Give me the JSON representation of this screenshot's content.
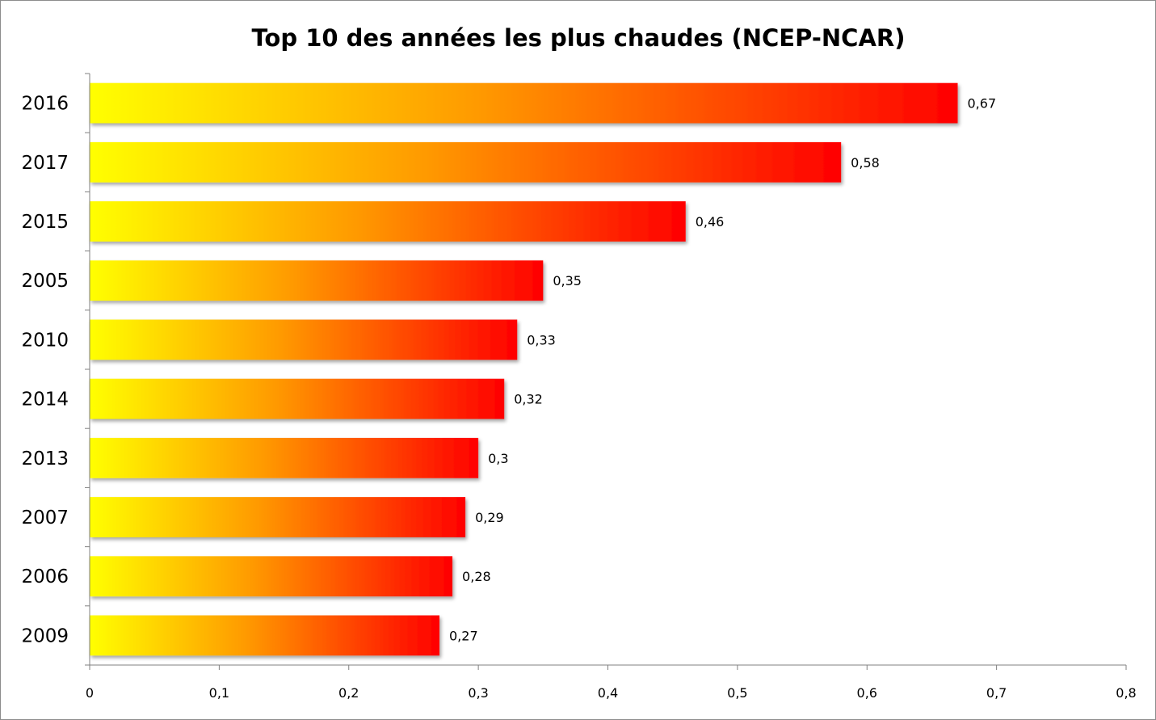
{
  "chart_data": {
    "type": "bar",
    "orientation": "horizontal",
    "title": "Top 10 des années les plus chaudes (NCEP-NCAR)",
    "xlabel": "",
    "ylabel": "",
    "categories": [
      "2016",
      "2017",
      "2015",
      "2005",
      "2010",
      "2014",
      "2013",
      "2007",
      "2006",
      "2009"
    ],
    "values": [
      0.67,
      0.58,
      0.46,
      0.35,
      0.33,
      0.32,
      0.3,
      0.29,
      0.28,
      0.27
    ],
    "data_labels": [
      "0,67",
      "0,58",
      "0,46",
      "0,35",
      "0,33",
      "0,32",
      "0,3",
      "0,29",
      "0,28",
      "0,27"
    ],
    "xlim": [
      0,
      0.8
    ],
    "x_ticks": [
      0,
      0.1,
      0.2,
      0.3,
      0.4,
      0.5,
      0.6,
      0.7,
      0.8
    ],
    "x_tick_labels": [
      "0",
      "0,1",
      "0,2",
      "0,3",
      "0,4",
      "0,5",
      "0,6",
      "0,7",
      "0,8"
    ],
    "grid": false,
    "legend": "none",
    "colors": {
      "gradient_start": "#ffff00",
      "gradient_mid": "#ff9900",
      "gradient_end": "#ff0000",
      "axis": "#808080",
      "frame": "#8c8c8c"
    }
  }
}
